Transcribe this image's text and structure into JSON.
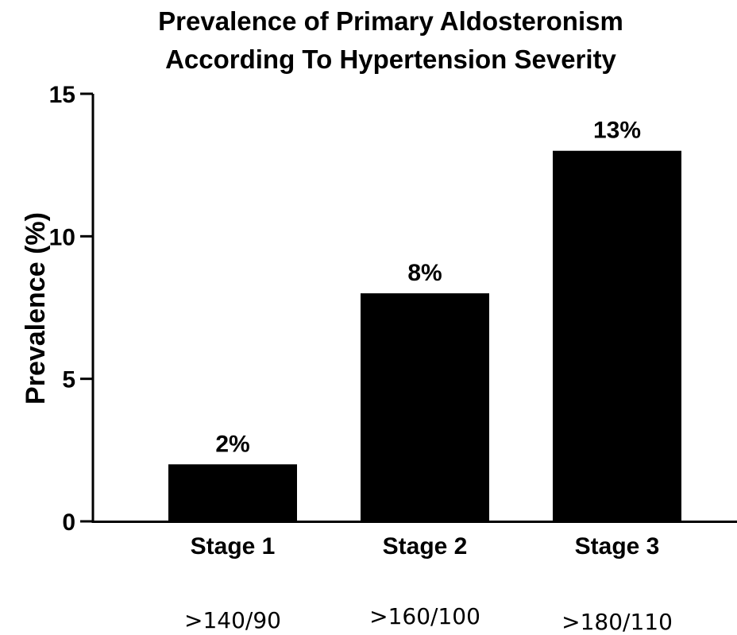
{
  "chart_data": {
    "type": "bar",
    "title_line1": "Prevalence of Primary Aldosteronism",
    "title_line2": "According To Hypertension Severity",
    "ylabel": "Prevalence (%)",
    "ylim": [
      0,
      15
    ],
    "yticks": [
      0,
      5,
      10,
      15
    ],
    "categories": [
      "Stage 1",
      "Stage 2",
      "Stage 3"
    ],
    "thresholds": [
      ">140/90",
      ">160/100",
      ">180/110"
    ],
    "values": [
      2,
      8,
      13
    ],
    "data_labels": [
      "2%",
      "8%",
      "13%"
    ],
    "bar_color": "#000000",
    "grid": false
  }
}
